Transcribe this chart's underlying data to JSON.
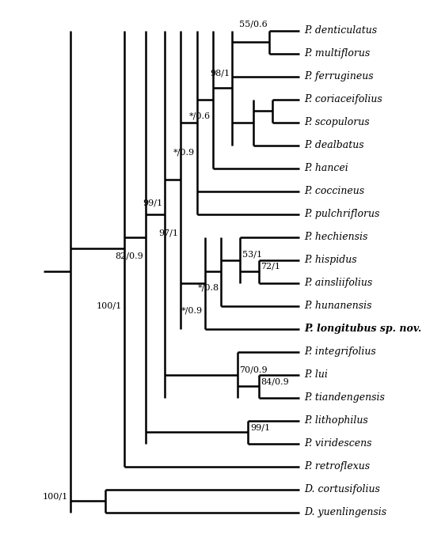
{
  "taxa": [
    "P. denticulatus",
    "P. multiflorus",
    "P. ferrugineus",
    "P. coriaceifolius",
    "P. scopulorus",
    "P. dealbatus",
    "P. hancei",
    "P. coccineus",
    "P. pulchriflorus",
    "P. hechiensis",
    "P. hispidus",
    "P. ainsliifolius",
    "P. hunanensis",
    "P. longitubus sp. nov.",
    "P. integrifolius",
    "P. lui",
    "P. tiandengensis",
    "P. lithophilus",
    "P. viridescens",
    "P. retroflexus",
    "D. cortusifolius",
    "D. yuenlingensis"
  ],
  "bold_taxa": [
    "P. longitubus sp. nov."
  ],
  "lw": 1.8,
  "color": "#000000",
  "bg_color": "#ffffff",
  "font_size": 9.0,
  "label_font_size": 8.0
}
